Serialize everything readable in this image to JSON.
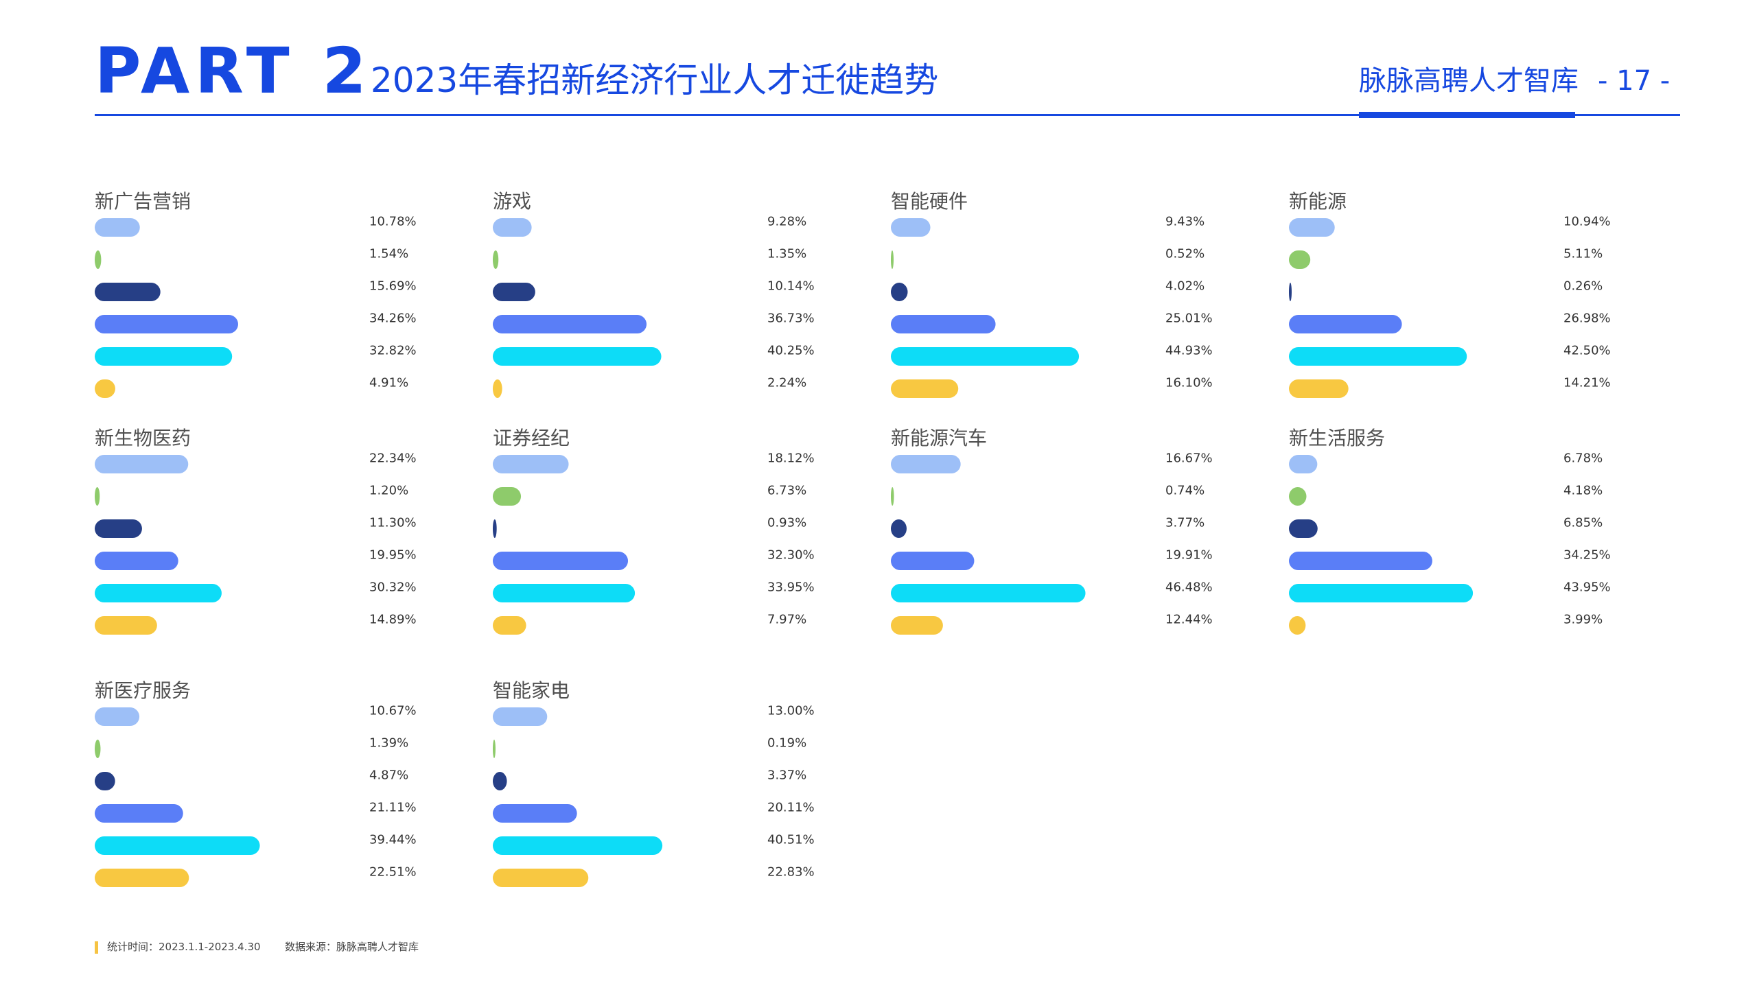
{
  "header": {
    "part_label": "PART 2",
    "title": "2023年春招新经济行业人才迁徙趋势",
    "brand": "脉脉高聘人才智库",
    "page_number": "- 17 -"
  },
  "colors": {
    "accent": "#1648e0",
    "series": [
      "#9dbff7",
      "#8ecb6b",
      "#263f86",
      "#5a7ef7",
      "#0ddcf7",
      "#f8c841"
    ]
  },
  "chart_data": [
    {
      "type": "bar",
      "title": "新广告营销",
      "values": [
        10.78,
        1.54,
        15.69,
        34.26,
        32.82,
        4.91
      ],
      "labels": [
        "10.78%",
        "1.54%",
        "15.69%",
        "34.26%",
        "32.82%",
        "4.91%"
      ]
    },
    {
      "type": "bar",
      "title": "游戏",
      "values": [
        9.28,
        1.35,
        10.14,
        36.73,
        40.25,
        2.24
      ],
      "labels": [
        "9.28%",
        "1.35%",
        "10.14%",
        "36.73%",
        "40.25%",
        "2.24%"
      ]
    },
    {
      "type": "bar",
      "title": "智能硬件",
      "values": [
        9.43,
        0.52,
        4.02,
        25.01,
        44.93,
        16.1
      ],
      "labels": [
        "9.43%",
        "0.52%",
        "4.02%",
        "25.01%",
        "44.93%",
        "16.10%"
      ]
    },
    {
      "type": "bar",
      "title": "新能源",
      "values": [
        10.94,
        5.11,
        0.26,
        26.98,
        42.5,
        14.21
      ],
      "labels": [
        "10.94%",
        "5.11%",
        "0.26%",
        "26.98%",
        "42.50%",
        "14.21%"
      ]
    },
    {
      "type": "bar",
      "title": "新生物医药",
      "values": [
        22.34,
        1.2,
        11.3,
        19.95,
        30.32,
        14.89
      ],
      "labels": [
        "22.34%",
        "1.20%",
        "11.30%",
        "19.95%",
        "30.32%",
        "14.89%"
      ]
    },
    {
      "type": "bar",
      "title": "证券经纪",
      "values": [
        18.12,
        6.73,
        0.93,
        32.3,
        33.95,
        7.97
      ],
      "labels": [
        "18.12%",
        "6.73%",
        "0.93%",
        "32.30%",
        "33.95%",
        "7.97%"
      ]
    },
    {
      "type": "bar",
      "title": "新能源汽车",
      "values": [
        16.67,
        0.74,
        3.77,
        19.91,
        46.48,
        12.44
      ],
      "labels": [
        "16.67%",
        "0.74%",
        "3.77%",
        "19.91%",
        "46.48%",
        "12.44%"
      ]
    },
    {
      "type": "bar",
      "title": "新生活服务",
      "values": [
        6.78,
        4.18,
        6.85,
        34.25,
        43.95,
        3.99
      ],
      "labels": [
        "6.78%",
        "4.18%",
        "6.85%",
        "34.25%",
        "43.95%",
        "3.99%"
      ]
    },
    {
      "type": "bar",
      "title": "新医疗服务",
      "values": [
        10.67,
        1.39,
        4.87,
        21.11,
        39.44,
        22.51
      ],
      "labels": [
        "10.67%",
        "1.39%",
        "4.87%",
        "21.11%",
        "39.44%",
        "22.51%"
      ]
    },
    {
      "type": "bar",
      "title": "智能家电",
      "values": [
        13.0,
        0.19,
        3.37,
        20.11,
        40.51,
        22.83
      ],
      "labels": [
        "13.00%",
        "0.19%",
        "3.37%",
        "20.11%",
        "40.51%",
        "22.83%"
      ]
    }
  ],
  "footer": {
    "stat_time": "统计时间：2023.1.1-2023.4.30",
    "source": "数据来源：脉脉高聘人才智库"
  }
}
